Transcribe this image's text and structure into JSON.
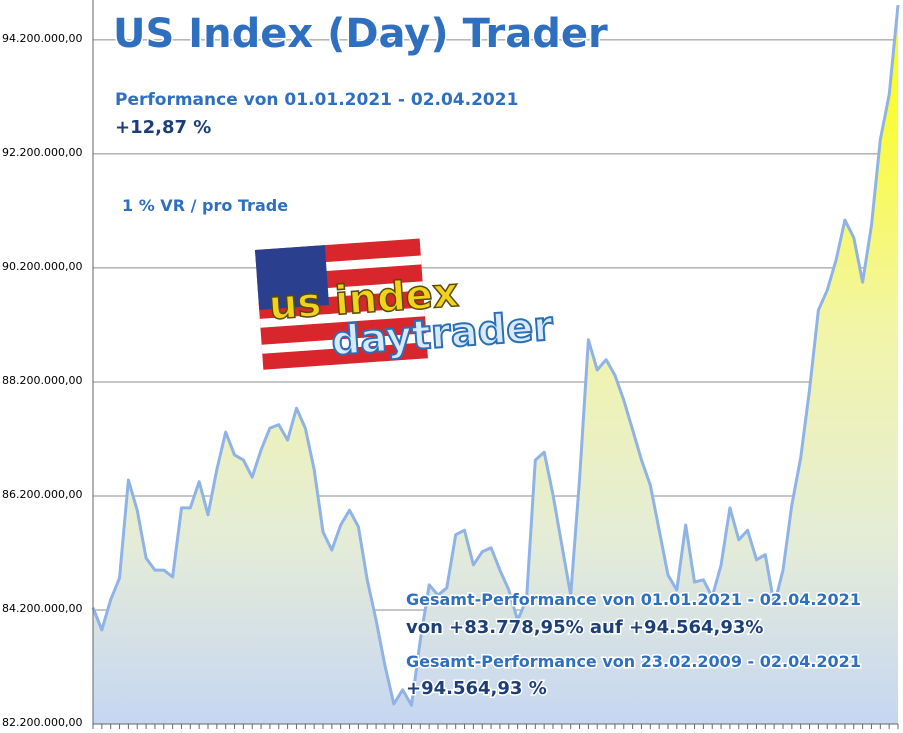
{
  "chart_data": {
    "type": "area",
    "title": "US Index (Day) Trader",
    "annotations": [
      "Performance  von  01.01.2021 - 02.04.2021",
      "+12,87 %",
      "1 % VR / pro Trade",
      "Gesamt-Performance  von  01.01.2021 - 02.04.2021",
      "von +83.778,95% auf  +94.564,93%",
      "Gesamt-Performance  von  23.02.2009 - 02.04.2021",
      "+94.564,93 %"
    ],
    "logo": [
      "us index",
      "daytrader"
    ],
    "color": "#8fb3e6",
    "grid": true,
    "ylim": [
      82200000,
      94900000
    ],
    "yticks": [
      {
        "value": 82200000,
        "label": "82.200.000,00"
      },
      {
        "value": 84200000,
        "label": "84.200.000,00"
      },
      {
        "value": 86200000,
        "label": "86.200.000,00"
      },
      {
        "value": 88200000,
        "label": "88.200.000,00"
      },
      {
        "value": 90200000,
        "label": "90.200.000,00"
      },
      {
        "value": 92200000,
        "label": "92.200.000,00"
      },
      {
        "value": 94200000,
        "label": "94.200.000,00"
      }
    ],
    "values": [
      84240000,
      83850000,
      84380000,
      84760000,
      86480000,
      85950000,
      85110000,
      84900000,
      84900000,
      84780000,
      85990000,
      85990000,
      86450000,
      85870000,
      86660000,
      87320000,
      86920000,
      86830000,
      86530000,
      87010000,
      87390000,
      87450000,
      87180000,
      87740000,
      87390000,
      86660000,
      85570000,
      85250000,
      85690000,
      85950000,
      85660000,
      84730000,
      84020000,
      83230000,
      82550000,
      82800000,
      82530000,
      83670000,
      84640000,
      84460000,
      84590000,
      85520000,
      85600000,
      84990000,
      85220000,
      85290000,
      84900000,
      84550000,
      84020000,
      84380000,
      86830000,
      86970000,
      86220000,
      85340000,
      84460000,
      86480000,
      88940000,
      88410000,
      88590000,
      88320000,
      87880000,
      87360000,
      86830000,
      86390000,
      85600000,
      84810000,
      84550000,
      85690000,
      84690000,
      84730000,
      84430000,
      84990000,
      85990000,
      85430000,
      85600000,
      85080000,
      85170000,
      84290000,
      84900000,
      86040000,
      86870000,
      88060000,
      89460000,
      89810000,
      90340000,
      91040000,
      90730000,
      89950000,
      90950000,
      92450000,
      93240000,
      94810000
    ]
  }
}
